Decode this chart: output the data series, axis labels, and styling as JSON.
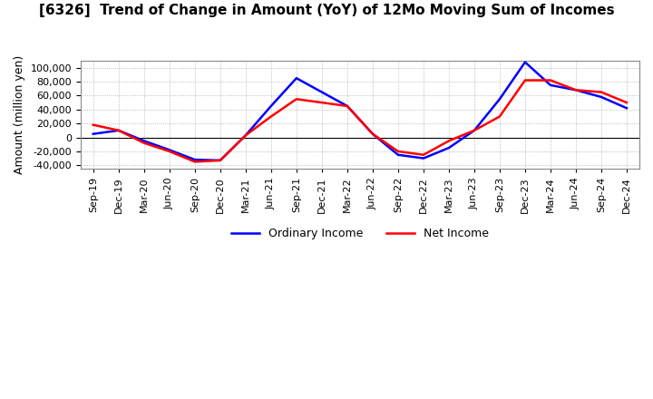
{
  "title": "[6326]  Trend of Change in Amount (YoY) of 12Mo Moving Sum of Incomes",
  "ylabel": "Amount (million yen)",
  "ylim": [
    -45000,
    110000
  ],
  "yticks": [
    -40000,
    -20000,
    0,
    20000,
    40000,
    60000,
    80000,
    100000
  ],
  "background_color": "#ffffff",
  "grid_color": "#aaaaaa",
  "x_labels": [
    "Sep-19",
    "Dec-19",
    "Mar-20",
    "Jun-20",
    "Sep-20",
    "Dec-20",
    "Mar-21",
    "Jun-21",
    "Sep-21",
    "Dec-21",
    "Mar-22",
    "Jun-22",
    "Sep-22",
    "Dec-22",
    "Mar-23",
    "Jun-23",
    "Sep-23",
    "Dec-23",
    "Mar-24",
    "Jun-24",
    "Sep-24",
    "Dec-24"
  ],
  "ordinary_income": [
    5000,
    10000,
    -5000,
    -18000,
    -32000,
    -33000,
    3000,
    45000,
    85000,
    65000,
    45000,
    5000,
    -25000,
    -30000,
    -15000,
    10000,
    55000,
    108000,
    75000,
    68000,
    58000,
    42000
  ],
  "net_income": [
    18000,
    10000,
    -8000,
    -20000,
    -35000,
    -33000,
    3000,
    30000,
    55000,
    50000,
    45000,
    5000,
    -20000,
    -25000,
    -5000,
    10000,
    30000,
    82000,
    82000,
    68000,
    65000,
    50000
  ],
  "ordinary_color": "#0000ff",
  "net_color": "#ff0000",
  "line_width": 1.8,
  "title_fontsize": 11,
  "tick_fontsize": 8,
  "ylabel_fontsize": 9
}
